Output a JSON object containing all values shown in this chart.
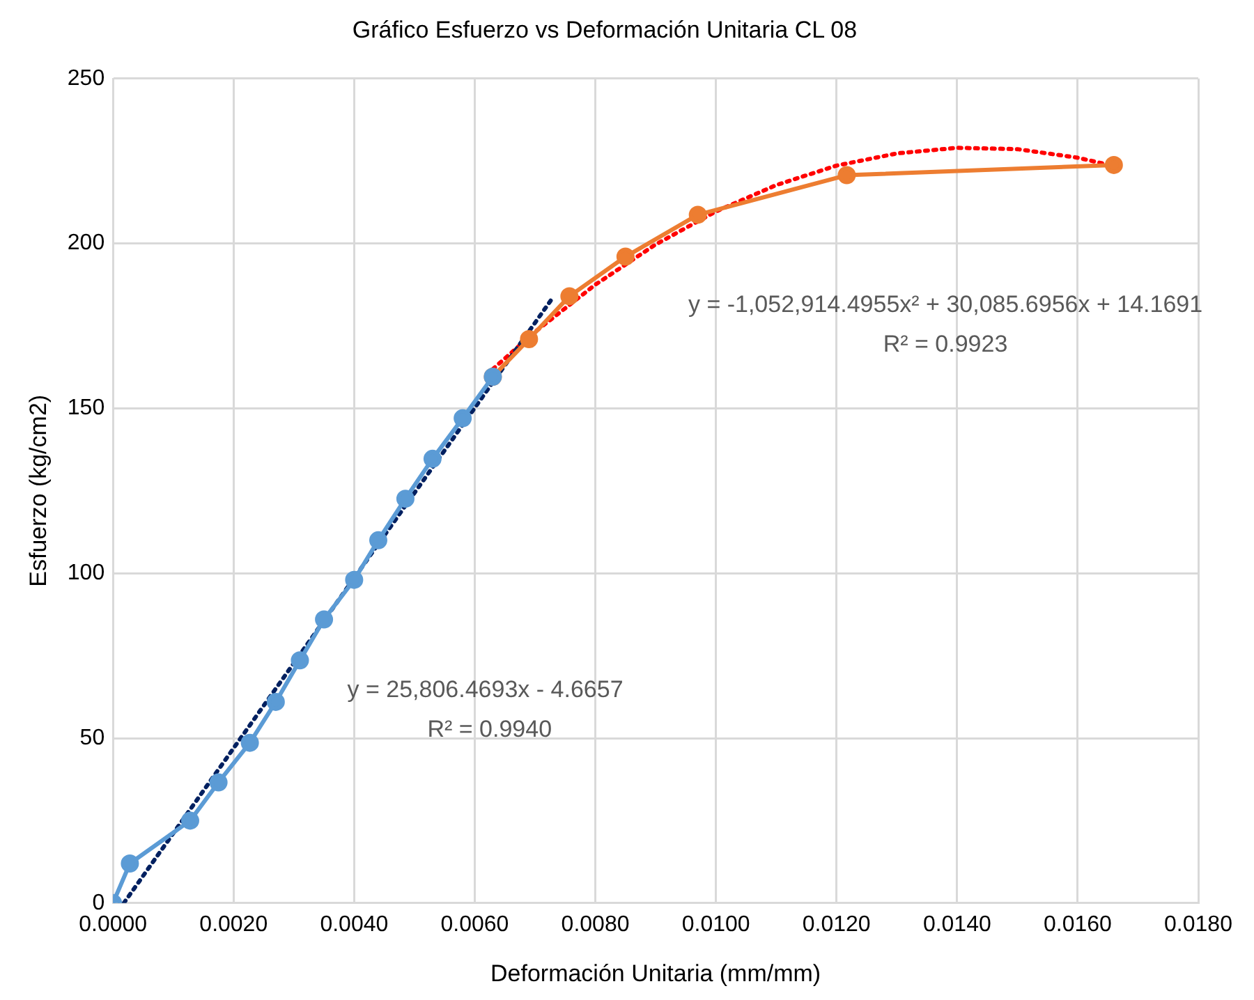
{
  "chart_data": {
    "type": "line",
    "title": "Gráfico Esfuerzo vs Deformación Unitaria CL 08",
    "xlabel": "Deformación Unitaria (mm/mm)",
    "ylabel": "Esfuerzo (kg/cm2)",
    "series": [
      {
        "color": "#5b9bd5",
        "marker": "circle",
        "line_style": "solid",
        "x": [
          0,
          0.00028,
          0.00128,
          0.00175,
          0.00227,
          0.0027,
          0.0031,
          0.0035,
          0.004,
          0.0044,
          0.00485,
          0.0053,
          0.0058,
          0.0063
        ],
        "values": [
          0,
          12,
          25,
          36.6,
          48.6,
          61,
          73.6,
          86,
          98,
          110,
          122.6,
          134.7,
          147,
          159.6
        ]
      },
      {
        "color": "#ed7d31",
        "marker": "circle",
        "line_style": "solid",
        "x": [
          0.0063,
          0.0069,
          0.00757,
          0.0085,
          0.0097,
          0.01217,
          0.0166
        ],
        "values": [
          159.6,
          171,
          184,
          196,
          208.7,
          220.7,
          223.8
        ]
      },
      {
        "color": "#002060",
        "marker": "none",
        "line_style": "dotted",
        "x": [
          0.00018,
          0.0073
        ],
        "values": [
          0,
          183.7
        ]
      },
      {
        "color": "#ff0000",
        "marker": "none",
        "line_style": "dotted",
        "x": [
          0.0063,
          0.007,
          0.008,
          0.009,
          0.01,
          0.011,
          0.012,
          0.013,
          0.014,
          0.015,
          0.016,
          0.0166
        ],
        "values": [
          161.9,
          173.2,
          187.5,
          199.7,
          209.7,
          217.7,
          223.6,
          227.3,
          229,
          228.6,
          226,
          223.5
        ]
      }
    ],
    "xlim": [
      0,
      0.018
    ],
    "xticks": [
      {
        "value": 0,
        "label": "0.0000"
      },
      {
        "value": 0.002,
        "label": "0.0020"
      },
      {
        "value": 0.004,
        "label": "0.0040"
      },
      {
        "value": 0.006,
        "label": "0.0060"
      },
      {
        "value": 0.008,
        "label": "0.0080"
      },
      {
        "value": 0.01,
        "label": "0.0100"
      },
      {
        "value": 0.012,
        "label": "0.0120"
      },
      {
        "value": 0.014,
        "label": "0.0140"
      },
      {
        "value": 0.016,
        "label": "0.0160"
      },
      {
        "value": 0.018,
        "label": "0.0180"
      }
    ],
    "ylim": [
      0,
      250
    ],
    "yticks": [
      0,
      50,
      100,
      150,
      200,
      250
    ],
    "grid": true,
    "legend": false,
    "annotations": [
      "y = -1,052,914.4955x² + 30,085.6956x + 14.1691",
      "R² = 0.9923",
      "y = 25,806.4693x - 4.6657",
      "R² = 0.9940"
    ]
  }
}
